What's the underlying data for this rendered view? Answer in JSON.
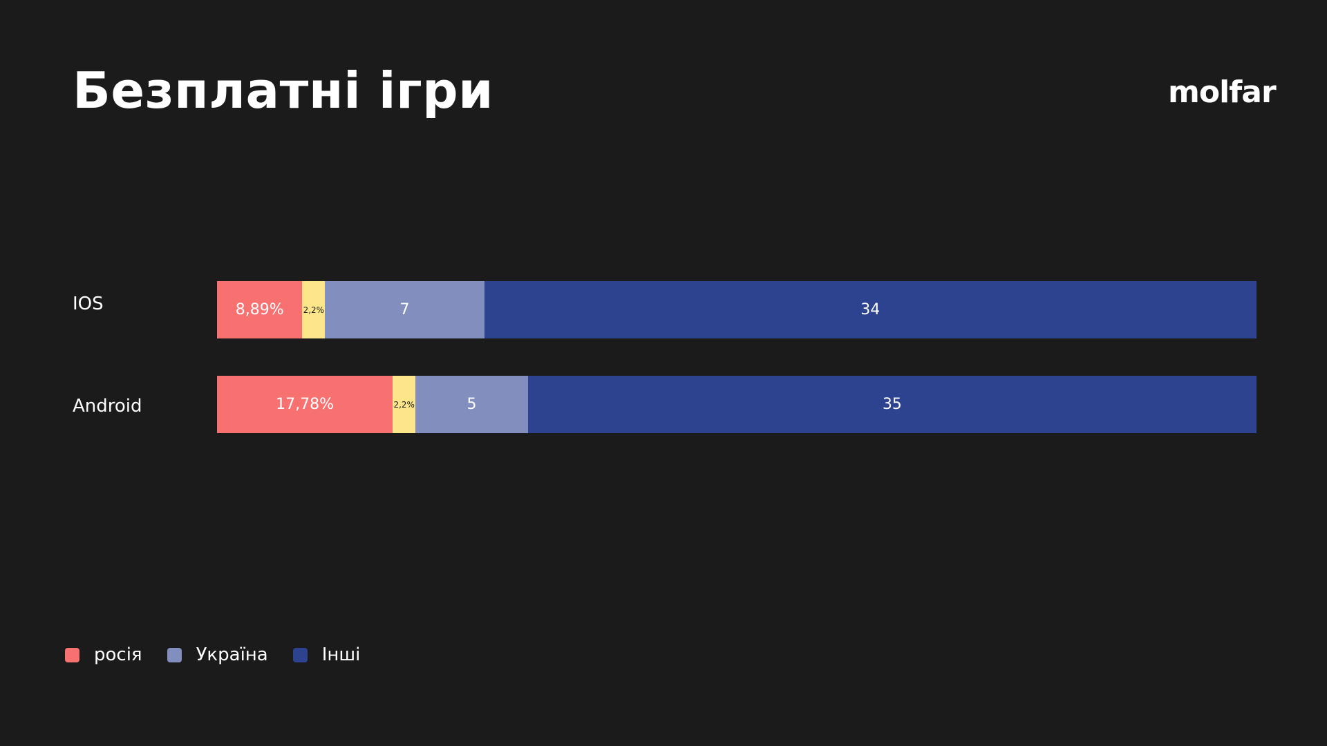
{
  "header": {
    "title": "Безплатні ігри",
    "logo": "molfar"
  },
  "chart_data": {
    "type": "bar",
    "orientation": "horizontal",
    "stacked": true,
    "categories": [
      "IOS",
      "Android"
    ],
    "series": [
      {
        "key": "russia",
        "color": "#f87171",
        "values": [
          8.89,
          17.78
        ],
        "labels": [
          "8,89%",
          "17,78%"
        ]
      },
      {
        "key": "yellow",
        "color": "#fde68a",
        "values": [
          2.2,
          2.2
        ],
        "labels": [
          "2,2%",
          "2,2%"
        ]
      },
      {
        "key": "ukraine",
        "color": "#828fbe",
        "values": [
          7,
          5
        ],
        "labels": [
          "7",
          "5"
        ]
      },
      {
        "key": "others",
        "color": "#2e4390",
        "values": [
          34,
          35
        ],
        "labels": [
          "34",
          "35"
        ]
      }
    ],
    "segment_widths_percent": [
      [
        8.2,
        2.2,
        15.3,
        74.3
      ],
      [
        16.9,
        2.2,
        10.8,
        70.1
      ]
    ],
    "legend": [
      {
        "label": "росія",
        "color": "#f87171"
      },
      {
        "label": "Україна",
        "color": "#828fbe"
      },
      {
        "label": "Інші",
        "color": "#2e4390"
      }
    ],
    "legend_position": "bottom-left",
    "grid": false
  }
}
